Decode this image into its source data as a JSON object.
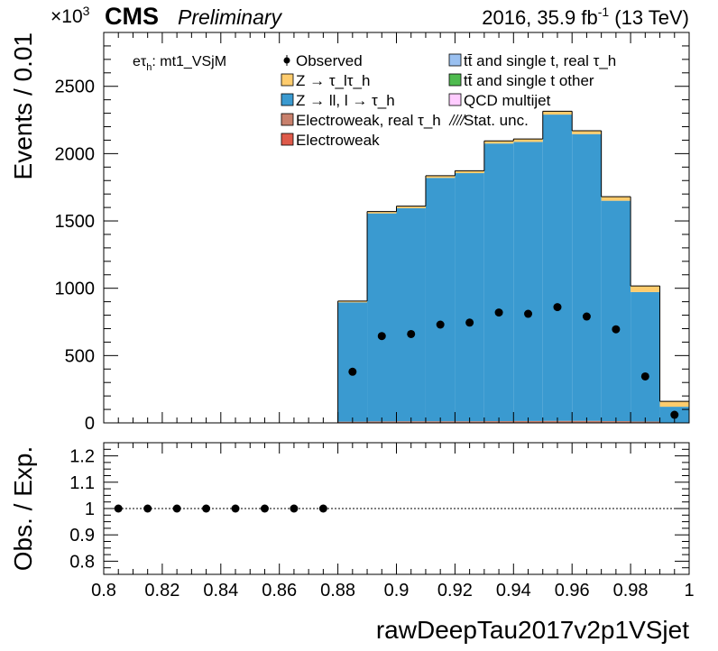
{
  "header": {
    "exponent_prefix": "×10",
    "exponent": "3",
    "cms": "CMS",
    "preliminary": "Preliminary",
    "lumi_prefix": "2016, 35.9 fb",
    "lumi_sup": "-1",
    "lumi_suffix": " (13 TeV)"
  },
  "channel_label": "eτ_h: mt1_VSjM",
  "chart_data": [
    {
      "type": "bar",
      "stacked": true,
      "xlabel": "rawDeepTau2017v2p1VSjet",
      "ylabel": "Events / 0.01",
      "xlim": [
        0.8,
        1.0
      ],
      "ylim": [
        0,
        2900
      ],
      "y_multiplier": "×10^3",
      "grid": false,
      "legend_position": "top",
      "bin_edges": [
        0.8,
        0.81,
        0.82,
        0.83,
        0.84,
        0.85,
        0.86,
        0.87,
        0.88,
        0.89,
        0.9,
        0.91,
        0.92,
        0.93,
        0.94,
        0.95,
        0.96,
        0.97,
        0.98,
        0.99,
        1.0
      ],
      "x_ticks": [
        "0.8",
        "0.82",
        "0.84",
        "0.86",
        "0.88",
        "0.9",
        "0.92",
        "0.94",
        "0.96",
        "0.98",
        "1"
      ],
      "y_ticks": [
        "0",
        "500",
        "1000",
        "1500",
        "2000",
        "2500"
      ],
      "series": [
        {
          "name": "Electroweak",
          "color": "#de5a4a",
          "values": [
            0,
            0,
            0,
            0,
            0,
            0,
            0,
            0,
            3,
            3,
            3,
            3,
            3,
            3,
            3,
            3,
            3,
            3,
            3,
            1
          ]
        },
        {
          "name": "Electroweak, real τ_h",
          "color": "#c8806c",
          "values": [
            0,
            0,
            0,
            0,
            0,
            0,
            0,
            0,
            6,
            8,
            9,
            9,
            9,
            10,
            11,
            12,
            12,
            10,
            7,
            2
          ]
        },
        {
          "name": "QCD multijet",
          "color": "#ffccff",
          "values": [
            0,
            0,
            0,
            0,
            0,
            0,
            0,
            0,
            0,
            0,
            0,
            0,
            0,
            0,
            0,
            0,
            0,
            0,
            0,
            0
          ]
        },
        {
          "name": "tt̄ and single t other",
          "color": "#4fbb4f",
          "values": [
            0,
            0,
            0,
            0,
            0,
            0,
            0,
            0,
            0,
            0,
            0,
            0,
            0,
            0,
            0,
            0,
            0,
            0,
            0,
            0
          ]
        },
        {
          "name": "tt̄ and single t, real τ_h",
          "color": "#9ac0f0",
          "values": [
            0,
            0,
            0,
            0,
            0,
            0,
            0,
            0,
            0,
            0,
            0,
            0,
            0,
            0,
            0,
            0,
            0,
            0,
            0,
            0
          ]
        },
        {
          "name": "Z → ll, l → τ_h",
          "color": "#3a9ad0",
          "values": [
            0,
            0,
            0,
            0,
            0,
            0,
            0,
            0,
            886,
            1545,
            1583,
            1808,
            1843,
            2062,
            2073,
            2275,
            2130,
            1637,
            962,
            117
          ]
        },
        {
          "name": "Z → τ_lτ_h",
          "color": "#fecc6d",
          "values": [
            0,
            0,
            0,
            0,
            0,
            0,
            0,
            0,
            10,
            14,
            15,
            16,
            18,
            20,
            22,
            25,
            25,
            30,
            45,
            40
          ]
        }
      ],
      "observed": {
        "name": "Observed",
        "x": [
          0.885,
          0.895,
          0.905,
          0.915,
          0.925,
          0.935,
          0.945,
          0.955,
          0.965,
          0.975,
          0.985,
          0.995
        ],
        "y": [
          380,
          645,
          660,
          730,
          745,
          820,
          810,
          860,
          790,
          695,
          345,
          60
        ]
      },
      "stat_unc_name": "Stat. unc."
    },
    {
      "type": "scatter",
      "xlabel": "rawDeepTau2017v2p1VSjet",
      "ylabel": "Obs. / Exp.",
      "xlim": [
        0.8,
        1.0
      ],
      "ylim": [
        0.75,
        1.25
      ],
      "y_ticks": [
        "0.8",
        "0.9",
        "1",
        "1.1",
        "1.2"
      ],
      "reference_line": 1,
      "x": [
        0.805,
        0.815,
        0.825,
        0.835,
        0.845,
        0.855,
        0.865,
        0.875
      ],
      "y": [
        1,
        1,
        1,
        1,
        1,
        1,
        1,
        1
      ]
    }
  ]
}
